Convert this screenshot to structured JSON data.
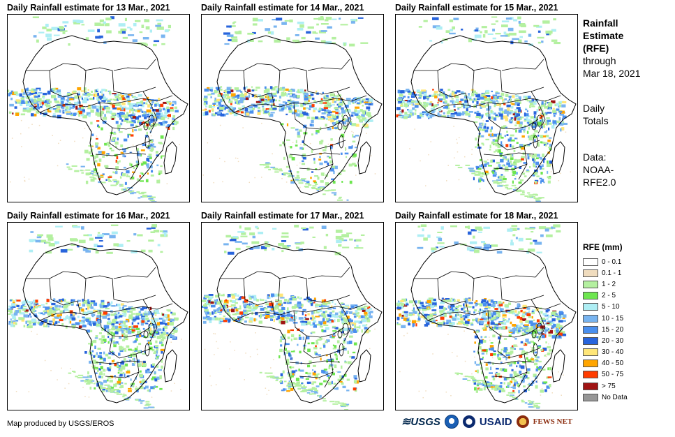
{
  "panels": [
    {
      "title": "Daily Rainfall estimate for 13 Mar., 2021",
      "seed": 13,
      "band_shift": 0,
      "south_amount": 0.6
    },
    {
      "title": "Daily Rainfall estimate for 14 Mar., 2021",
      "seed": 14,
      "band_shift": -2,
      "south_amount": 0.4
    },
    {
      "title": "Daily Rainfall estimate for 15 Mar., 2021",
      "seed": 15,
      "band_shift": 2,
      "south_amount": 0.9
    },
    {
      "title": "Daily Rainfall estimate for 16 Mar., 2021",
      "seed": 16,
      "band_shift": 4,
      "south_amount": 1.0
    },
    {
      "title": "Daily Rainfall estimate for 17 Mar., 2021",
      "seed": 17,
      "band_shift": -3,
      "south_amount": 0.7
    },
    {
      "title": "Daily Rainfall estimate for 18 Mar., 2021",
      "seed": 18,
      "band_shift": 3,
      "south_amount": 0.9
    }
  ],
  "side": {
    "heading_line1": "Rainfall",
    "heading_line2": "Estimate",
    "heading_line3": "(RFE)",
    "through": "through",
    "date": "Mar 18, 2021",
    "totals_line1": "Daily",
    "totals_line2": "Totals",
    "data_line1": "Data:",
    "data_line2": "NOAA-",
    "data_line3": "RFE2.0"
  },
  "legend": {
    "title": "RFE (mm)",
    "items": [
      {
        "label": "0 - 0.1",
        "color": "#ffffff"
      },
      {
        "label": "0.1 - 1",
        "color": "#f0dcbe"
      },
      {
        "label": "1 - 2",
        "color": "#b4f0a0"
      },
      {
        "label": "2 - 5",
        "color": "#6ee650"
      },
      {
        "label": "5 - 10",
        "color": "#aeeef4"
      },
      {
        "label": "10 - 15",
        "color": "#78b4f0"
      },
      {
        "label": "15 - 20",
        "color": "#4a8fee"
      },
      {
        "label": "20 - 30",
        "color": "#2864dc"
      },
      {
        "label": "30 - 40",
        "color": "#ffe678"
      },
      {
        "label": "40 - 50",
        "color": "#ffa500"
      },
      {
        "label": "50 - 75",
        "color": "#ff3c00"
      },
      {
        "label": "> 75",
        "color": "#a01414"
      },
      {
        "label": "No Data",
        "color": "#969696"
      }
    ]
  },
  "footer": {
    "credit": "Map produced by USGS/EROS"
  },
  "logos": {
    "usgs": "USGS",
    "usaid": "USAID",
    "fews": "FEWS NET"
  }
}
